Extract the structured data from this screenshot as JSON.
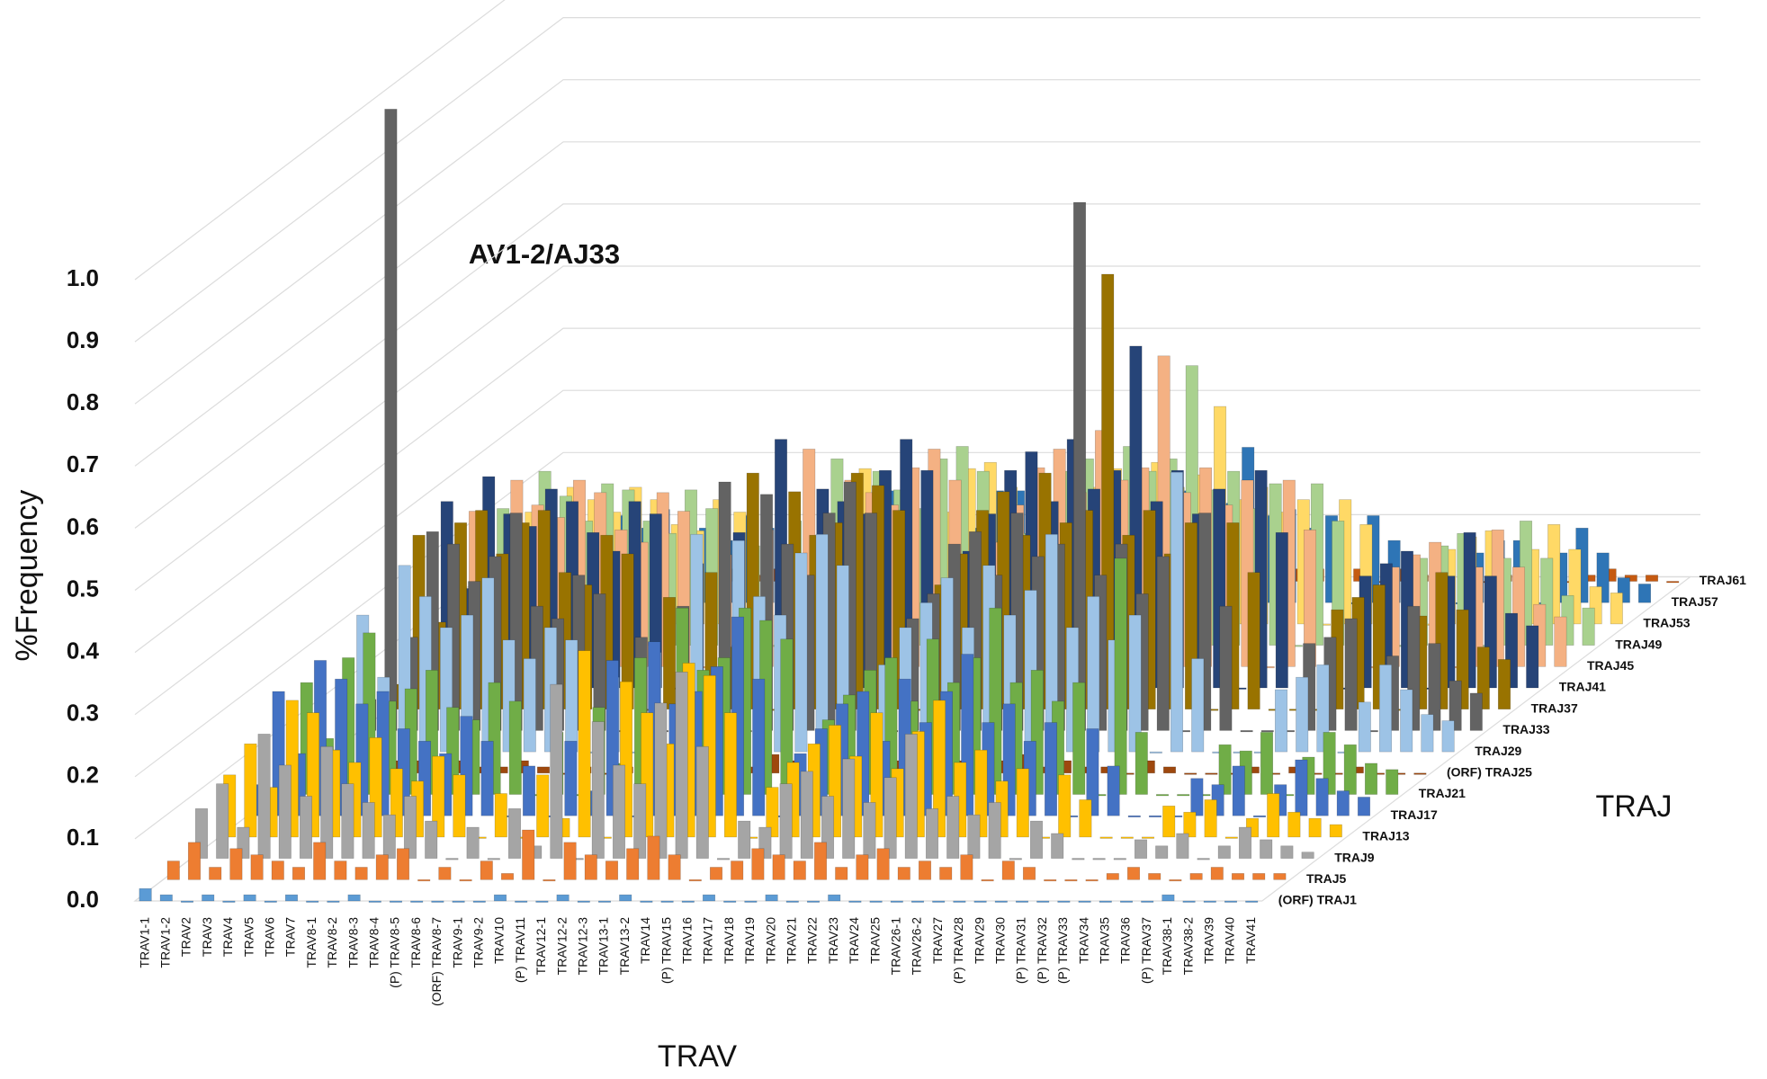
{
  "chart_data": {
    "type": "bar3d",
    "ylabel": "%Frequency",
    "xlabel": "TRAV",
    "zlabel": "TRAJ",
    "annotation": "AV1-2/AJ33",
    "ylim": [
      0,
      1
    ],
    "yticks": [
      {
        "value": 0,
        "label": "0.0"
      },
      0.1,
      0.2,
      0.3,
      0.4,
      0.5,
      0.6,
      0.7,
      0.8,
      0.9,
      {
        "value": 1,
        "label": "1.0"
      }
    ],
    "grid": true,
    "categories": [
      "TRAV1-1",
      "TRAV1-2",
      "TRAV2",
      "TRAV3",
      "TRAV4",
      "TRAV5",
      "TRAV6",
      "TRAV7",
      "TRAV8-1",
      "TRAV8-2",
      "TRAV8-3",
      "TRAV8-4",
      "(P) TRAV8-5",
      "TRAV8-6",
      "(ORF) TRAV8-7",
      "TRAV9-1",
      "TRAV9-2",
      "TRAV10",
      "(P) TRAV11",
      "TRAV12-1",
      "TRAV12-2",
      "TRAV12-3",
      "TRAV13-1",
      "TRAV13-2",
      "TRAV14",
      "(P) TRAV15",
      "TRAV16",
      "TRAV17",
      "TRAV18",
      "TRAV19",
      "TRAV20",
      "TRAV21",
      "TRAV22",
      "TRAV23",
      "TRAV24",
      "TRAV25",
      "TRAV26-1",
      "TRAV26-2",
      "TRAV27",
      "(P) TRAV28",
      "TRAV29",
      "TRAV30",
      "(P) TRAV31",
      "(P) TRAV32",
      "(P) TRAV33",
      "TRAV34",
      "TRAV35",
      "TRAV36",
      "(P) TRAV37",
      "TRAV38-1",
      "TRAV38-2",
      "TRAV39",
      "TRAV40",
      "TRAV41"
    ],
    "series": [
      {
        "name": "(ORF) TRAJ1",
        "color": "#5b9bd5",
        "values": [
          0.02,
          0.01,
          0,
          0.01,
          0,
          0.01,
          0,
          0.01,
          0,
          0,
          0.01,
          0,
          0,
          0,
          0,
          0,
          0,
          0.01,
          0,
          0,
          0.01,
          0,
          0,
          0.01,
          0,
          0,
          0,
          0.01,
          0,
          0,
          0.01,
          0,
          0,
          0.01,
          0,
          0,
          0,
          0,
          0,
          0,
          0,
          0,
          0,
          0,
          0,
          0,
          0,
          0,
          0,
          0.01,
          0,
          0,
          0,
          0
        ]
      },
      {
        "name": "TRAJ5",
        "color": "#ed7d31",
        "values": [
          0.03,
          0.06,
          0.02,
          0.05,
          0.04,
          0.03,
          0.02,
          0.06,
          0.03,
          0.02,
          0.04,
          0.05,
          0,
          0.02,
          0,
          0.03,
          0.01,
          0.08,
          0,
          0.06,
          0.04,
          0.03,
          0.05,
          0.07,
          0.04,
          0,
          0.02,
          0.03,
          0.05,
          0.04,
          0.03,
          0.06,
          0.02,
          0.04,
          0.05,
          0.02,
          0.03,
          0.02,
          0.04,
          0,
          0.03,
          0.02,
          0,
          0,
          0,
          0.01,
          0.02,
          0.01,
          0,
          0.01,
          0.02,
          0.01,
          0.01,
          0.01
        ]
      },
      {
        "name": "TRAJ9",
        "color": "#a5a5a5",
        "values": [
          0.08,
          0.12,
          0.05,
          0.2,
          0.15,
          0.1,
          0.18,
          0.12,
          0.09,
          0.07,
          0.1,
          0.06,
          0,
          0.05,
          0,
          0.08,
          0.02,
          0.28,
          0,
          0.22,
          0.15,
          0.12,
          0.25,
          0.3,
          0.18,
          0,
          0.06,
          0.05,
          0.12,
          0.14,
          0.1,
          0.16,
          0.09,
          0.13,
          0.2,
          0.08,
          0.1,
          0.07,
          0.09,
          0,
          0.06,
          0.04,
          0,
          0,
          0,
          0.03,
          0.02,
          0.04,
          0,
          0.02,
          0.05,
          0.03,
          0.02,
          0.01
        ]
      },
      {
        "name": "TRAJ13",
        "color": "#ffc000",
        "values": [
          0.1,
          0.15,
          0.08,
          0.22,
          0.2,
          0.14,
          0.12,
          0.16,
          0.11,
          0.09,
          0.13,
          0.1,
          0,
          0.07,
          0,
          0.1,
          0.03,
          0.3,
          0,
          0.25,
          0.2,
          0.15,
          0.28,
          0.26,
          0.2,
          0,
          0.08,
          0.12,
          0.15,
          0.18,
          0.13,
          0.2,
          0.11,
          0.17,
          0.22,
          0.12,
          0.14,
          0.09,
          0.11,
          0,
          0.1,
          0.06,
          0,
          0,
          0,
          0.05,
          0.04,
          0.06,
          0,
          0.03,
          0.07,
          0.04,
          0.03,
          0.02
        ]
      },
      {
        "name": "TRAJ17",
        "color": "#4472c4",
        "values": [
          0.05,
          0.2,
          0.1,
          0.25,
          0.22,
          0.18,
          0.2,
          0.14,
          0.12,
          0.1,
          0.16,
          0.12,
          0,
          0.08,
          0,
          0.12,
          0.04,
          0.25,
          0,
          0.28,
          0.18,
          0.2,
          0.24,
          0.32,
          0.22,
          0,
          0.1,
          0.14,
          0.18,
          0.2,
          0.12,
          0.22,
          0.15,
          0.2,
          0.26,
          0.15,
          0.18,
          0.12,
          0.15,
          0,
          0.14,
          0.08,
          0,
          0,
          0,
          0.06,
          0.05,
          0.08,
          0,
          0.05,
          0.09,
          0.06,
          0.04,
          0.03
        ]
      },
      {
        "name": "TRAJ21",
        "color": "#70ad47",
        "values": [
          0.04,
          0.18,
          0.09,
          0.22,
          0.26,
          0.15,
          0.17,
          0.2,
          0.14,
          0.12,
          0.18,
          0.15,
          0,
          0.1,
          0,
          0.14,
          0.05,
          0.22,
          0,
          0.3,
          0.2,
          0.22,
          0.3,
          0.28,
          0.25,
          0,
          0.12,
          0.16,
          0.2,
          0.22,
          0.15,
          0.25,
          0.18,
          0.22,
          0.3,
          0.18,
          0.2,
          0.15,
          0.18,
          0,
          0.38,
          0.1,
          0,
          0,
          0,
          0.08,
          0.07,
          0.1,
          0,
          0.06,
          0.1,
          0.08,
          0.05,
          0.04
        ]
      },
      {
        "name": "(ORF) TRAJ25",
        "color": "#9e480e",
        "values": [
          0.01,
          0.02,
          0.01,
          0.03,
          0.02,
          0.02,
          0.01,
          0.02,
          0.01,
          0.01,
          0.02,
          0.01,
          0,
          0.01,
          0,
          0.01,
          0,
          0.03,
          0,
          0.02,
          0.02,
          0.01,
          0.03,
          0.02,
          0.02,
          0,
          0.01,
          0.01,
          0.02,
          0.02,
          0.01,
          0.02,
          0.01,
          0.02,
          0.03,
          0.01,
          0.02,
          0.01,
          0.01,
          0,
          0.02,
          0.01,
          0,
          0,
          0,
          0.01,
          0,
          0.01,
          0,
          0,
          0.01,
          0,
          0,
          0
        ]
      },
      {
        "name": "TRAJ29",
        "color": "#9dc3e6",
        "values": [
          0.06,
          0.22,
          0.12,
          0.3,
          0.25,
          0.2,
          0.22,
          0.28,
          0.18,
          0.15,
          0.2,
          0.18,
          0,
          0.12,
          0,
          0.16,
          0.06,
          0.35,
          0,
          0.34,
          0.25,
          0.22,
          0.32,
          0.35,
          0.3,
          0,
          0.14,
          0.2,
          0.24,
          0.28,
          0.2,
          0.3,
          0.22,
          0.26,
          0.35,
          0.2,
          0.25,
          0.18,
          0.22,
          0,
          0.45,
          0.15,
          0,
          0,
          0,
          0.1,
          0.12,
          0.14,
          0,
          0.08,
          0.14,
          0.1,
          0.06,
          0.05
        ]
      },
      {
        "name": "TRAJ33",
        "color": "#636363",
        "values": [
          0.05,
          1.0,
          0.15,
          0.32,
          0.3,
          0.24,
          0.28,
          0.35,
          0.2,
          0.18,
          0.25,
          0.22,
          0,
          0.15,
          0,
          0.2,
          0.08,
          0.4,
          0,
          0.38,
          0.3,
          0.25,
          0.35,
          0.4,
          0.35,
          0,
          0.18,
          0.22,
          0.3,
          0.32,
          0.25,
          0.35,
          0.28,
          0.3,
          0.85,
          0.25,
          0.3,
          0.22,
          0.28,
          0,
          0.35,
          0.2,
          0,
          0,
          0,
          0.14,
          0.15,
          0.18,
          0,
          0.12,
          0.2,
          0.14,
          0.08,
          0.06
        ]
      },
      {
        "name": "TRAJ37",
        "color": "#997300",
        "values": [
          0.04,
          0.28,
          0.14,
          0.3,
          0.32,
          0.25,
          0.3,
          0.32,
          0.22,
          0.2,
          0.28,
          0.25,
          0,
          0.18,
          0,
          0.22,
          0.1,
          0.38,
          0,
          0.35,
          0.28,
          0.3,
          0.38,
          0.36,
          0.32,
          0,
          0.2,
          0.25,
          0.32,
          0.35,
          0.28,
          0.38,
          0.3,
          0.32,
          0.7,
          0.28,
          0.32,
          0.25,
          0.3,
          0,
          0.3,
          0.22,
          0,
          0,
          0,
          0.16,
          0.18,
          0.2,
          0,
          0.15,
          0.22,
          0.16,
          0.1,
          0.08
        ]
      },
      {
        "name": "TRAJ41",
        "color": "#264478",
        "values": [
          0.05,
          0.3,
          0.16,
          0.34,
          0.28,
          0.26,
          0.32,
          0.3,
          0.25,
          0.22,
          0.3,
          0.28,
          0,
          0.2,
          0,
          0.25,
          0.12,
          0.4,
          0,
          0.32,
          0.3,
          0.28,
          0.35,
          0.4,
          0.35,
          0,
          0.22,
          0.28,
          0.35,
          0.38,
          0.3,
          0.4,
          0.32,
          0.35,
          0.55,
          0.3,
          0.35,
          0.28,
          0.32,
          0,
          0.35,
          0.25,
          0,
          0,
          0,
          0.18,
          0.2,
          0.22,
          0,
          0.18,
          0.25,
          0.18,
          0.12,
          0.1
        ]
      },
      {
        "name": "TRAJ45",
        "color": "#f4b183",
        "values": [
          0.04,
          0.25,
          0.15,
          0.3,
          0.26,
          0.24,
          0.3,
          0.28,
          0.22,
          0.2,
          0.28,
          0.25,
          0,
          0.18,
          0,
          0.22,
          0.1,
          0.35,
          0,
          0.3,
          0.28,
          0.26,
          0.32,
          0.35,
          0.3,
          0,
          0.2,
          0.26,
          0.32,
          0.35,
          0.28,
          0.38,
          0.3,
          0.32,
          0.5,
          0.28,
          0.32,
          0.26,
          0.3,
          0,
          0.3,
          0.22,
          0,
          0,
          0,
          0.16,
          0.18,
          0.2,
          0,
          0.16,
          0.22,
          0.16,
          0.1,
          0.08
        ]
      },
      {
        "name": "TRAJ49",
        "color": "#a9d18e",
        "values": [
          0.03,
          0.22,
          0.12,
          0.28,
          0.24,
          0.2,
          0.26,
          0.25,
          0.2,
          0.18,
          0.25,
          0.22,
          0,
          0.16,
          0,
          0.2,
          0.08,
          0.3,
          0,
          0.28,
          0.25,
          0.22,
          0.3,
          0.32,
          0.28,
          0,
          0.18,
          0.22,
          0.28,
          0.3,
          0.25,
          0.32,
          0.28,
          0.3,
          0.45,
          0.25,
          0.28,
          0.22,
          0.26,
          0,
          0.26,
          0.2,
          0,
          0,
          0,
          0.14,
          0.16,
          0.18,
          0,
          0.14,
          0.2,
          0.14,
          0.08,
          0.06
        ]
      },
      {
        "name": "TRAJ53",
        "color": "#ffd966",
        "values": [
          0.03,
          0.18,
          0.1,
          0.22,
          0.2,
          0.18,
          0.22,
          0.2,
          0.16,
          0.15,
          0.2,
          0.18,
          0,
          0.12,
          0,
          0.16,
          0.06,
          0.25,
          0,
          0.22,
          0.2,
          0.18,
          0.25,
          0.26,
          0.22,
          0,
          0.14,
          0.18,
          0.22,
          0.25,
          0.2,
          0.26,
          0.22,
          0.24,
          0.35,
          0.2,
          0.22,
          0.18,
          0.2,
          0,
          0.2,
          0.16,
          0,
          0,
          0,
          0.12,
          0.14,
          0.15,
          0,
          0.12,
          0.16,
          0.12,
          0.06,
          0.05
        ]
      },
      {
        "name": "TRAJ57",
        "color": "#2e75b6",
        "values": [
          0.02,
          0.12,
          0.08,
          0.15,
          0.14,
          0.12,
          0.15,
          0.14,
          0.12,
          0.1,
          0.14,
          0.12,
          0,
          0.08,
          0,
          0.12,
          0.04,
          0.18,
          0,
          0.15,
          0.14,
          0.12,
          0.18,
          0.18,
          0.15,
          0,
          0.1,
          0.12,
          0.15,
          0.18,
          0.14,
          0.18,
          0.15,
          0.16,
          0.25,
          0.14,
          0.15,
          0.12,
          0.14,
          0,
          0.14,
          0.1,
          0,
          0,
          0,
          0.08,
          0.1,
          0.1,
          0,
          0.08,
          0.12,
          0.08,
          0.04,
          0.03
        ]
      },
      {
        "name": "TRAJ61",
        "color": "#c55a11",
        "values": [
          0.01,
          0.02,
          0.01,
          0.03,
          0.02,
          0.02,
          0.02,
          0.02,
          0.02,
          0.01,
          0.02,
          0.02,
          0,
          0.01,
          0,
          0.02,
          0.01,
          0.03,
          0,
          0.02,
          0.02,
          0.02,
          0.03,
          0.03,
          0.02,
          0,
          0.01,
          0.02,
          0.02,
          0.03,
          0.02,
          0.03,
          0.02,
          0.02,
          0.04,
          0.02,
          0.02,
          0.02,
          0.02,
          0,
          0.02,
          0.01,
          0,
          0,
          0,
          0.01,
          0.01,
          0.01,
          0,
          0.01,
          0.02,
          0.01,
          0.01,
          0
        ]
      }
    ]
  }
}
